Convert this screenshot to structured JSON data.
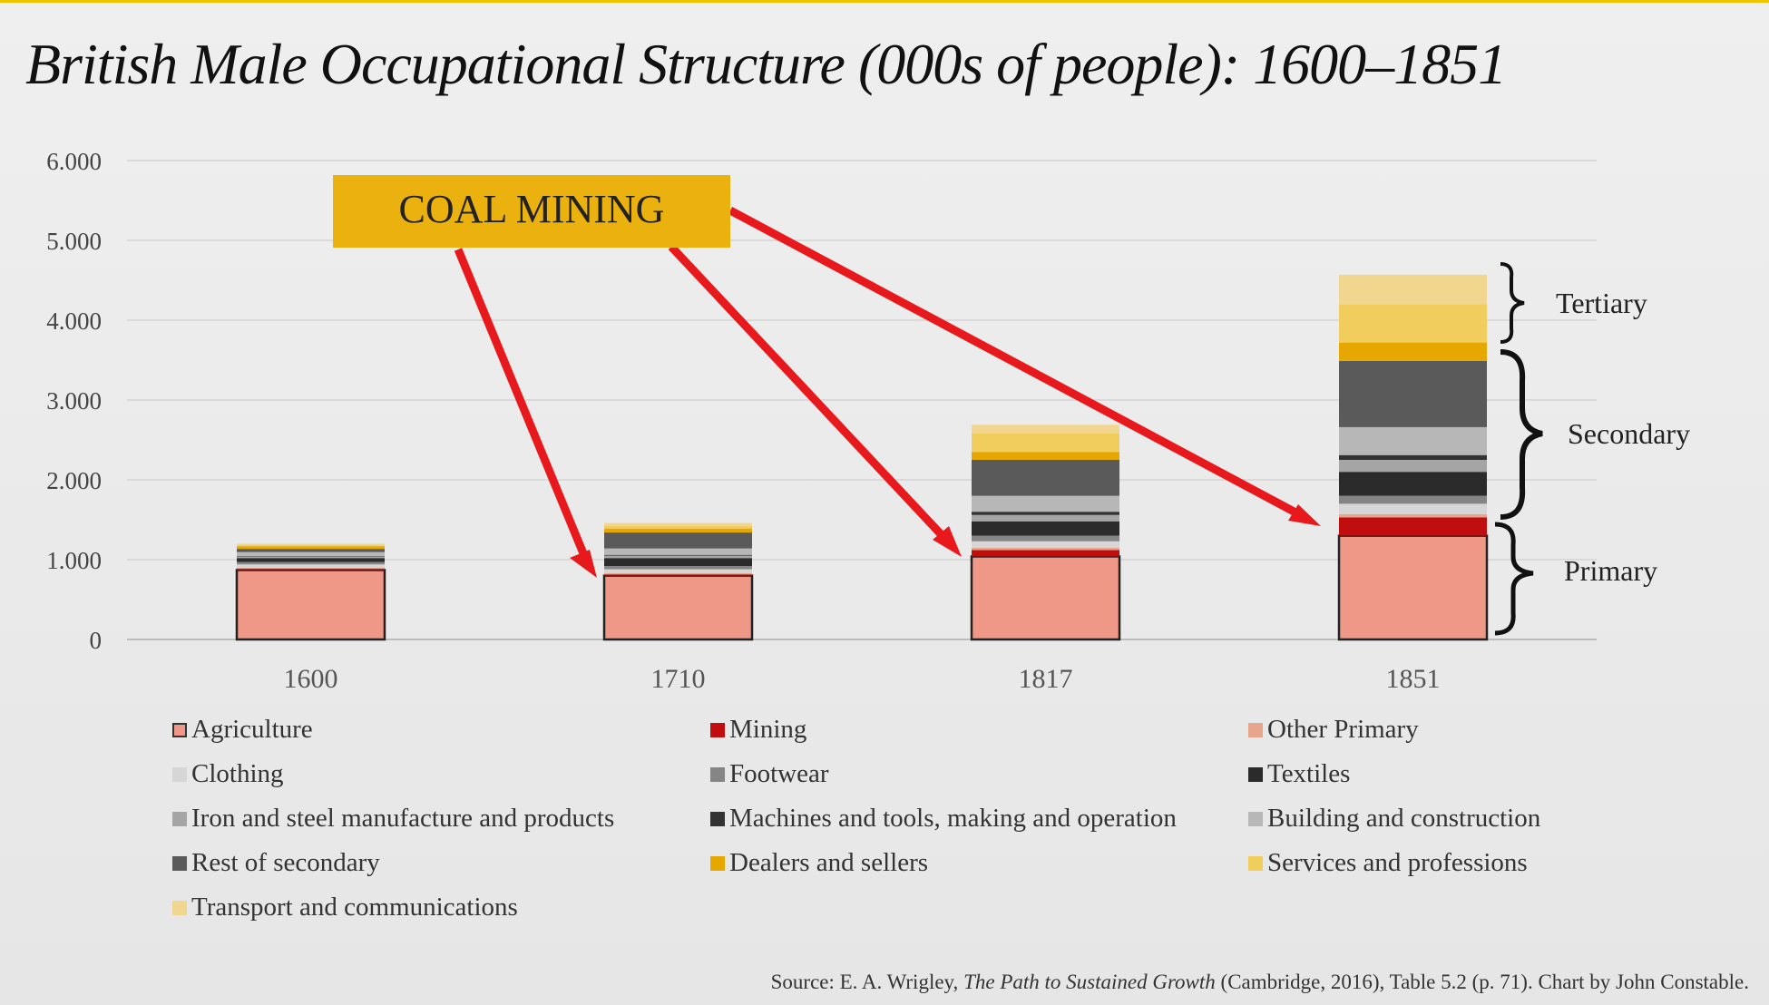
{
  "title": "British Male Occupational Structure (000s of people): 1600–1851",
  "source": {
    "prefix": "Source: E. A. Wrigley, ",
    "book": "The Path to Sustained Growth",
    "suffix": " (Cambridge, 2016), Table 5.2 (p. 71). Chart by John Constable."
  },
  "callout": {
    "text": "COAL MINING",
    "color": "#ebb20f",
    "arrow_color": "#e8191c"
  },
  "brackets": [
    "Tertiary",
    "Secondary",
    "Primary"
  ],
  "y_tick_labels": [
    "0",
    "1.000",
    "2.000",
    "3.000",
    "4.000",
    "5.000",
    "6.000"
  ],
  "chart_data": {
    "type": "bar",
    "stacked": true,
    "categories": [
      "1600",
      "1710",
      "1817",
      "1851"
    ],
    "ylim": [
      0,
      6000
    ],
    "yticks": [
      0,
      1000,
      2000,
      3000,
      4000,
      5000,
      6000
    ],
    "grid": true,
    "legend_position": "bottom",
    "series": [
      {
        "name": "Agriculture",
        "color": "#ef9887",
        "values": [
          870,
          800,
          1040,
          1300
        ]
      },
      {
        "name": "Mining",
        "color": "#c00d0d",
        "values": [
          15,
          15,
          80,
          230
        ]
      },
      {
        "name": "Other Primary",
        "color": "#e8a58d",
        "values": [
          15,
          15,
          30,
          40
        ]
      },
      {
        "name": "Clothing",
        "color": "#d6d6d6",
        "values": [
          40,
          50,
          80,
          130
        ]
      },
      {
        "name": "Footwear",
        "color": "#858585",
        "values": [
          30,
          40,
          70,
          100
        ]
      },
      {
        "name": "Textiles",
        "color": "#2b2b2b",
        "values": [
          50,
          100,
          180,
          300
        ]
      },
      {
        "name": "Iron and steel manufacture and products",
        "color": "#a5a5a5",
        "values": [
          20,
          30,
          80,
          150
        ]
      },
      {
        "name": "Machines and tools, making and operation",
        "color": "#333333",
        "values": [
          5,
          10,
          40,
          60
        ]
      },
      {
        "name": "Building and construction",
        "color": "#b7b7b7",
        "values": [
          50,
          80,
          200,
          350
        ]
      },
      {
        "name": "Rest of secondary",
        "color": "#5a5a5a",
        "values": [
          40,
          200,
          450,
          830
        ]
      },
      {
        "name": "Dealers and sellers",
        "color": "#e6a800",
        "values": [
          30,
          50,
          100,
          230
        ]
      },
      {
        "name": "Services and professions",
        "color": "#f0cd5c",
        "values": [
          20,
          30,
          230,
          480
        ]
      },
      {
        "name": "Transport and communications",
        "color": "#f1d690",
        "values": [
          15,
          40,
          110,
          370
        ]
      }
    ]
  }
}
